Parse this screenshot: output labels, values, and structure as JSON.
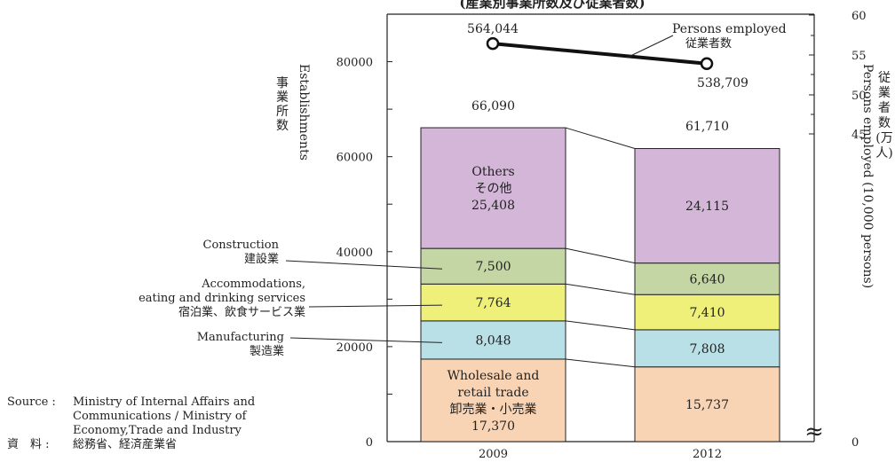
{
  "title": "(産業別事業所数及び従業者数)",
  "source": {
    "label_en": "Source :",
    "text_en_lines": [
      "Ministry of Internal Affairs and",
      "Communications / Ministry of",
      "Economy,Trade and Industry"
    ],
    "label_ja": "資　料 :",
    "text_ja": "総務省、経済産業省"
  },
  "chart_data": {
    "type": "bar",
    "stacked": true,
    "categories": [
      "2009",
      "2012"
    ],
    "y_left": {
      "label_en": "Establishments",
      "label_ja_lines": [
        "事",
        "業",
        "所",
        "数"
      ],
      "ylim": [
        0,
        90000
      ],
      "ticks": [
        0,
        20000,
        40000,
        60000,
        80000
      ],
      "tick_labels": [
        "0",
        "20000",
        "40000",
        "60000",
        "80000"
      ]
    },
    "y_right": {
      "label_en": "Persons employed (10,000 persons)",
      "label_ja_lines": [
        "従",
        "業",
        "者",
        "数",
        "(万",
        "人)"
      ],
      "tick_labels": [
        "0",
        "45",
        "50",
        "55",
        "60"
      ],
      "axis_break": "≈"
    },
    "series": [
      {
        "name_en": "Wholesale and retail trade",
        "name_ja": "卸売業・小売業",
        "color": "#f8d4b4",
        "values": [
          17370,
          15737
        ],
        "value_labels": [
          "17,370",
          "15,737"
        ]
      },
      {
        "name_en": "Manufacturing",
        "name_ja": "製造業",
        "color": "#b9e0e6",
        "values": [
          8048,
          7808
        ],
        "value_labels": [
          "8,048",
          "7,808"
        ]
      },
      {
        "name_en": "Accommodations, eating and drinking services",
        "name_ja": "宿泊業、飲食サービス業",
        "color": "#eef07a",
        "values": [
          7764,
          7410
        ],
        "value_labels": [
          "7,764",
          "7,410"
        ]
      },
      {
        "name_en": "Construction",
        "name_ja": "建設業",
        "color": "#c3d6a3",
        "values": [
          7500,
          6640
        ],
        "value_labels": [
          "7,500",
          "6,640"
        ]
      },
      {
        "name_en": "Others",
        "name_ja": "その他",
        "color": "#d3b6d8",
        "values": [
          25408,
          24115
        ],
        "value_labels": [
          "25,408",
          "24,115"
        ]
      }
    ],
    "totals": [
      66090,
      61710
    ],
    "total_labels": [
      "66,090",
      "61,710"
    ],
    "line_series": {
      "name_en": "Persons employed",
      "name_ja": "従業者数",
      "values": [
        564044,
        538709
      ],
      "value_labels": [
        "564,044",
        "538,709"
      ],
      "unit_scale": "10,000 persons",
      "ylim": [
        45,
        60
      ]
    },
    "left_labels": [
      {
        "series_index": 3,
        "lines": [
          "Construction",
          "建設業"
        ]
      },
      {
        "series_index": 2,
        "lines": [
          "Accommodations,",
          "eating and drinking services",
          "宿泊業、飲食サービス業"
        ]
      },
      {
        "series_index": 1,
        "lines": [
          "Manufacturing",
          "製造業"
        ]
      }
    ],
    "inbar_labels": {
      "0": [
        "Wholesale and",
        "retail trade",
        "卸売業・小売業"
      ],
      "4": [
        "Others",
        "その他"
      ]
    }
  }
}
